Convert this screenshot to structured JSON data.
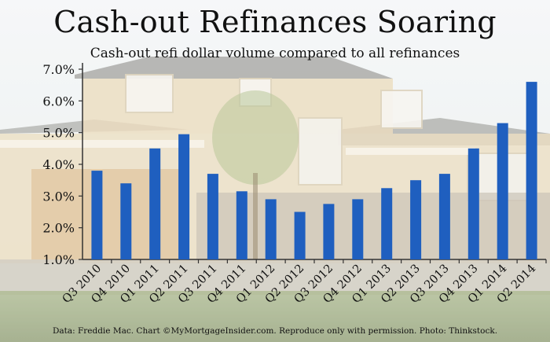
{
  "title": "Cash-out Refinances Soaring",
  "subtitle": "Cash-out refi dollar volume compared to all refinances",
  "footer": "Data: Freddie Mac. Chart ©MyMortgageInsider.com. Reproduce only with permission. Photo: Thinkstock.",
  "colors": {
    "bar": "#1f5fbf"
  },
  "chart_data": {
    "type": "bar",
    "title": "Cash-out Refinances Soaring",
    "subtitle": "Cash-out refi dollar volume compared to all refinances",
    "xlabel": "",
    "ylabel": "",
    "ylim": [
      1.0,
      7.0
    ],
    "yticks": [
      "1.0%",
      "2.0%",
      "3.0%",
      "4.0%",
      "5.0%",
      "6.0%",
      "7.0%"
    ],
    "grid": false,
    "categories": [
      "Q3 2010",
      "Q4 2010",
      "Q1 2011",
      "Q2 2011",
      "Q3 2011",
      "Q4 2011",
      "Q1 2012",
      "Q2 2012",
      "Q3 2012",
      "Q4 2012",
      "Q1 2013",
      "Q2 2013",
      "Q3 2013",
      "Q4 2013",
      "Q1 2014",
      "Q2 2014"
    ],
    "values": [
      3.8,
      3.4,
      4.5,
      4.95,
      3.7,
      3.15,
      2.9,
      2.5,
      2.75,
      2.9,
      3.25,
      3.5,
      3.7,
      4.5,
      5.3,
      6.6
    ]
  }
}
